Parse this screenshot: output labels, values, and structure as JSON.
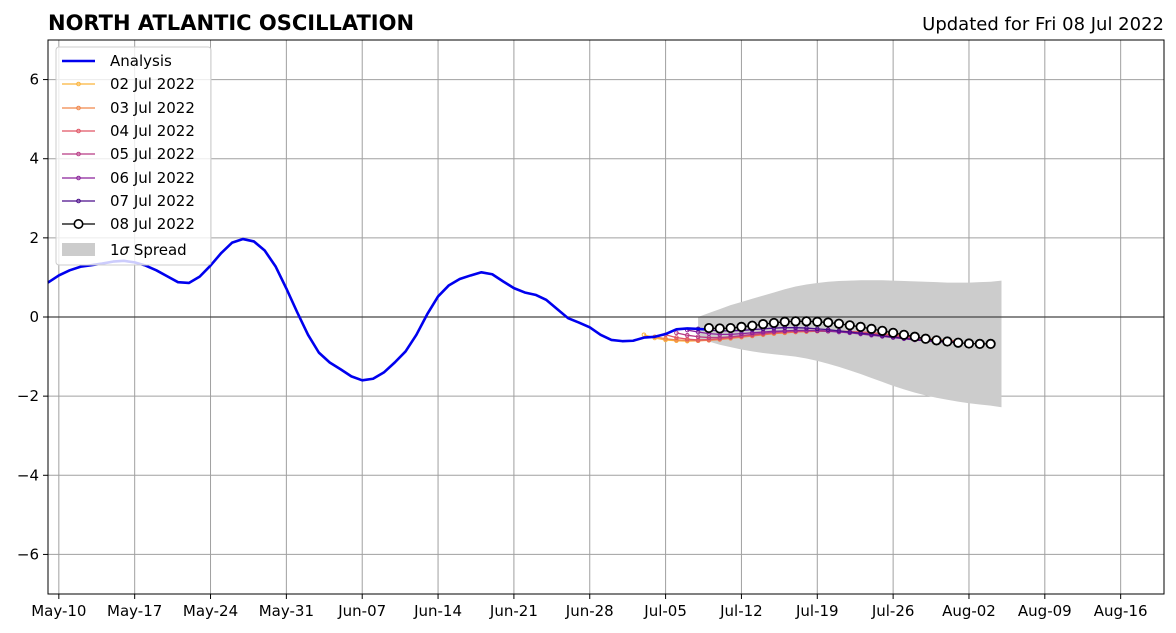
{
  "chart_data": {
    "type": "line",
    "title": "NORTH ATLANTIC OSCILLATION",
    "subtitle": "Updated for Fri 08 Jul 2022",
    "x_start": "2022-05-09",
    "xlim": [
      "2022-05-09",
      "2022-08-20"
    ],
    "ylim": [
      -7,
      7
    ],
    "yticks": [
      -6,
      -4,
      -2,
      0,
      2,
      4,
      6
    ],
    "ytick_labels": [
      "−6",
      "−4",
      "−2",
      "0",
      "2",
      "4",
      "6"
    ],
    "xticks": [
      "2022-05-10",
      "2022-05-17",
      "2022-05-24",
      "2022-05-31",
      "2022-06-07",
      "2022-06-14",
      "2022-06-21",
      "2022-06-28",
      "2022-07-05",
      "2022-07-12",
      "2022-07-19",
      "2022-07-26",
      "2022-08-02",
      "2022-08-09",
      "2022-08-16"
    ],
    "xtick_labels": [
      "May-10",
      "May-17",
      "May-24",
      "May-31",
      "Jun-07",
      "Jun-14",
      "Jun-21",
      "Jun-28",
      "Jul-05",
      "Jul-12",
      "Jul-19",
      "Jul-26",
      "Aug-02",
      "Aug-09",
      "Aug-16"
    ],
    "grid": true,
    "legend_position": "top-left",
    "legend": {
      "analysis": "Analysis",
      "f0702": "02 Jul 2022",
      "f0703": "03 Jul 2022",
      "f0704": "04 Jul 2022",
      "f0705": "05 Jul 2022",
      "f0706": "06 Jul 2022",
      "f0707": "07 Jul 2022",
      "f0708": "08 Jul 2022",
      "spread_prefix": "1",
      "spread_sigma": "σ",
      "spread_suffix": " Spread"
    },
    "analysis": {
      "name": "Analysis",
      "color": "#0000ee",
      "start": "2022-05-09",
      "values": [
        0.87,
        1.05,
        1.18,
        1.27,
        1.31,
        1.35,
        1.4,
        1.42,
        1.38,
        1.3,
        1.18,
        1.03,
        0.88,
        0.86,
        1.02,
        1.3,
        1.62,
        1.88,
        1.97,
        1.91,
        1.68,
        1.28,
        0.72,
        0.12,
        -0.45,
        -0.9,
        -1.15,
        -1.32,
        -1.5,
        -1.6,
        -1.56,
        -1.4,
        -1.15,
        -0.87,
        -0.45,
        0.07,
        0.52,
        0.8,
        0.96,
        1.05,
        1.13,
        1.08,
        0.9,
        0.73,
        0.62,
        0.56,
        0.43,
        0.2,
        -0.03,
        -0.14,
        -0.26,
        -0.45,
        -0.58,
        -0.61,
        -0.6,
        -0.52,
        -0.5,
        -0.43,
        -0.31,
        -0.29,
        -0.3,
        -0.32
      ]
    },
    "forecasts": [
      {
        "name": "02 Jul 2022",
        "color": "#fbb33b",
        "start": "2022-07-03",
        "values": [
          -0.45,
          -0.53,
          -0.58,
          -0.6,
          -0.61,
          -0.6,
          -0.58,
          -0.56,
          -0.53,
          -0.5,
          -0.47,
          -0.44,
          -0.42,
          -0.4,
          -0.38,
          -0.37,
          -0.36,
          -0.36,
          -0.36,
          -0.37,
          -0.38,
          -0.4,
          -0.42,
          -0.45,
          -0.48,
          -0.51,
          -0.54,
          -0.57,
          -0.59,
          -0.6
        ]
      },
      {
        "name": "03 Jul 2022",
        "color": "#f0864a",
        "start": "2022-07-04",
        "values": [
          -0.5,
          -0.55,
          -0.58,
          -0.59,
          -0.6,
          -0.59,
          -0.57,
          -0.54,
          -0.51,
          -0.48,
          -0.45,
          -0.42,
          -0.4,
          -0.38,
          -0.37,
          -0.36,
          -0.36,
          -0.36,
          -0.37,
          -0.38,
          -0.4,
          -0.42,
          -0.45,
          -0.48,
          -0.51,
          -0.54,
          -0.57,
          -0.59,
          -0.6
        ]
      },
      {
        "name": "04 Jul 2022",
        "color": "#e05565",
        "start": "2022-07-05",
        "values": [
          -0.45,
          -0.52,
          -0.56,
          -0.58,
          -0.57,
          -0.55,
          -0.52,
          -0.49,
          -0.46,
          -0.43,
          -0.4,
          -0.38,
          -0.37,
          -0.36,
          -0.35,
          -0.35,
          -0.36,
          -0.37,
          -0.38,
          -0.4,
          -0.43,
          -0.46,
          -0.49,
          -0.52,
          -0.55,
          -0.58,
          -0.6,
          -0.61
        ]
      },
      {
        "name": "05 Jul 2022",
        "color": "#b83a85",
        "start": "2022-07-06",
        "values": [
          -0.4,
          -0.46,
          -0.5,
          -0.52,
          -0.52,
          -0.5,
          -0.47,
          -0.44,
          -0.41,
          -0.38,
          -0.36,
          -0.35,
          -0.34,
          -0.34,
          -0.35,
          -0.36,
          -0.38,
          -0.4,
          -0.43,
          -0.46,
          -0.49,
          -0.52,
          -0.55,
          -0.58,
          -0.6,
          -0.61,
          -0.62
        ]
      },
      {
        "name": "06 Jul 2022",
        "color": "#8a229a",
        "start": "2022-07-07",
        "values": [
          -0.33,
          -0.38,
          -0.42,
          -0.44,
          -0.44,
          -0.42,
          -0.4,
          -0.38,
          -0.36,
          -0.35,
          -0.34,
          -0.34,
          -0.35,
          -0.36,
          -0.38,
          -0.4,
          -0.43,
          -0.46,
          -0.49,
          -0.52,
          -0.55,
          -0.58,
          -0.6,
          -0.62,
          -0.63,
          -0.64
        ]
      },
      {
        "name": "07 Jul 2022",
        "color": "#4a0c8a",
        "start": "2022-07-08",
        "values": [
          -0.3,
          -0.33,
          -0.35,
          -0.35,
          -0.34,
          -0.32,
          -0.3,
          -0.28,
          -0.27,
          -0.27,
          -0.28,
          -0.3,
          -0.32,
          -0.35,
          -0.38,
          -0.41,
          -0.44,
          -0.48,
          -0.51,
          -0.54,
          -0.57,
          -0.6,
          -0.62,
          -0.64,
          -0.65
        ]
      }
    ],
    "latest": {
      "name": "08 Jul 2022",
      "color": "#000000",
      "start": "2022-07-09",
      "values": [
        -0.28,
        -0.29,
        -0.28,
        -0.25,
        -0.22,
        -0.18,
        -0.15,
        -0.12,
        -0.11,
        -0.11,
        -0.12,
        -0.14,
        -0.17,
        -0.21,
        -0.25,
        -0.3,
        -0.35,
        -0.4,
        -0.45,
        -0.5,
        -0.55,
        -0.59,
        -0.62,
        -0.65,
        -0.67,
        -0.68,
        -0.68
      ]
    },
    "spread": {
      "name": "1σ Spread",
      "color": "#cccccc",
      "start": "2022-07-08",
      "upper": [
        0.0,
        0.1,
        0.2,
        0.3,
        0.38,
        0.46,
        0.54,
        0.62,
        0.7,
        0.77,
        0.82,
        0.86,
        0.89,
        0.91,
        0.92,
        0.93,
        0.93,
        0.93,
        0.92,
        0.91,
        0.9,
        0.89,
        0.88,
        0.87,
        0.87,
        0.87,
        0.88,
        0.89,
        0.92
      ],
      "lower": [
        -0.55,
        -0.62,
        -0.7,
        -0.76,
        -0.82,
        -0.87,
        -0.91,
        -0.94,
        -0.97,
        -1.0,
        -1.05,
        -1.11,
        -1.18,
        -1.26,
        -1.35,
        -1.44,
        -1.54,
        -1.64,
        -1.74,
        -1.83,
        -1.91,
        -1.98,
        -2.04,
        -2.09,
        -2.14,
        -2.18,
        -2.21,
        -2.24,
        -2.28
      ]
    }
  }
}
